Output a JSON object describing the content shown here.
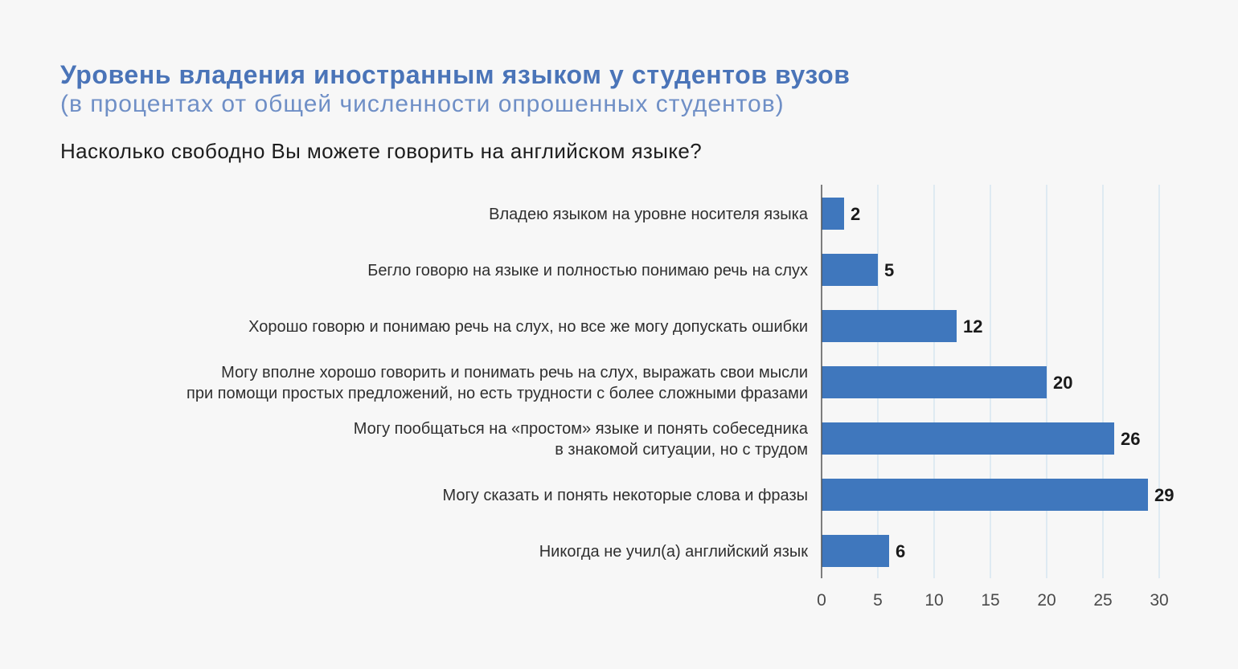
{
  "header": {
    "title": "Уровень владения иностранным языком у студентов вузов",
    "subtitle": "(в процентах от общей численности опрошенных студентов)",
    "question": "Насколько свободно Вы можете говорить на английском языке?"
  },
  "colors": {
    "bar": "#3f77bd",
    "grid": "#cfe3f0",
    "axis": "#555555",
    "title": "#4a74b8"
  },
  "chart_data": {
    "type": "bar",
    "orientation": "horizontal",
    "categories": [
      [
        "Владею языком на уровне носителя языка"
      ],
      [
        "Бегло говорю на языке и полностью понимаю речь на слух"
      ],
      [
        "Хорошо говорю и понимаю речь на слух, но все же могу допускать ошибки"
      ],
      [
        "Могу вполне хорошо говорить и понимать речь на слух, выражать свои мысли",
        "при помощи простых предложений, но есть трудности с более сложными фразами"
      ],
      [
        "Могу пообщаться на «простом» языке и понять собеседника",
        "в знакомой ситуации, но с трудом"
      ],
      [
        "Могу сказать и понять некоторые слова и фразы"
      ],
      [
        "Никогда не учил(а) английский язык"
      ]
    ],
    "values": [
      2,
      5,
      12,
      20,
      26,
      29,
      6
    ],
    "xlim": [
      0,
      30
    ],
    "xticks": [
      0,
      5,
      10,
      15,
      20,
      25,
      30
    ],
    "grid": true,
    "xlabel": "",
    "ylabel": ""
  }
}
